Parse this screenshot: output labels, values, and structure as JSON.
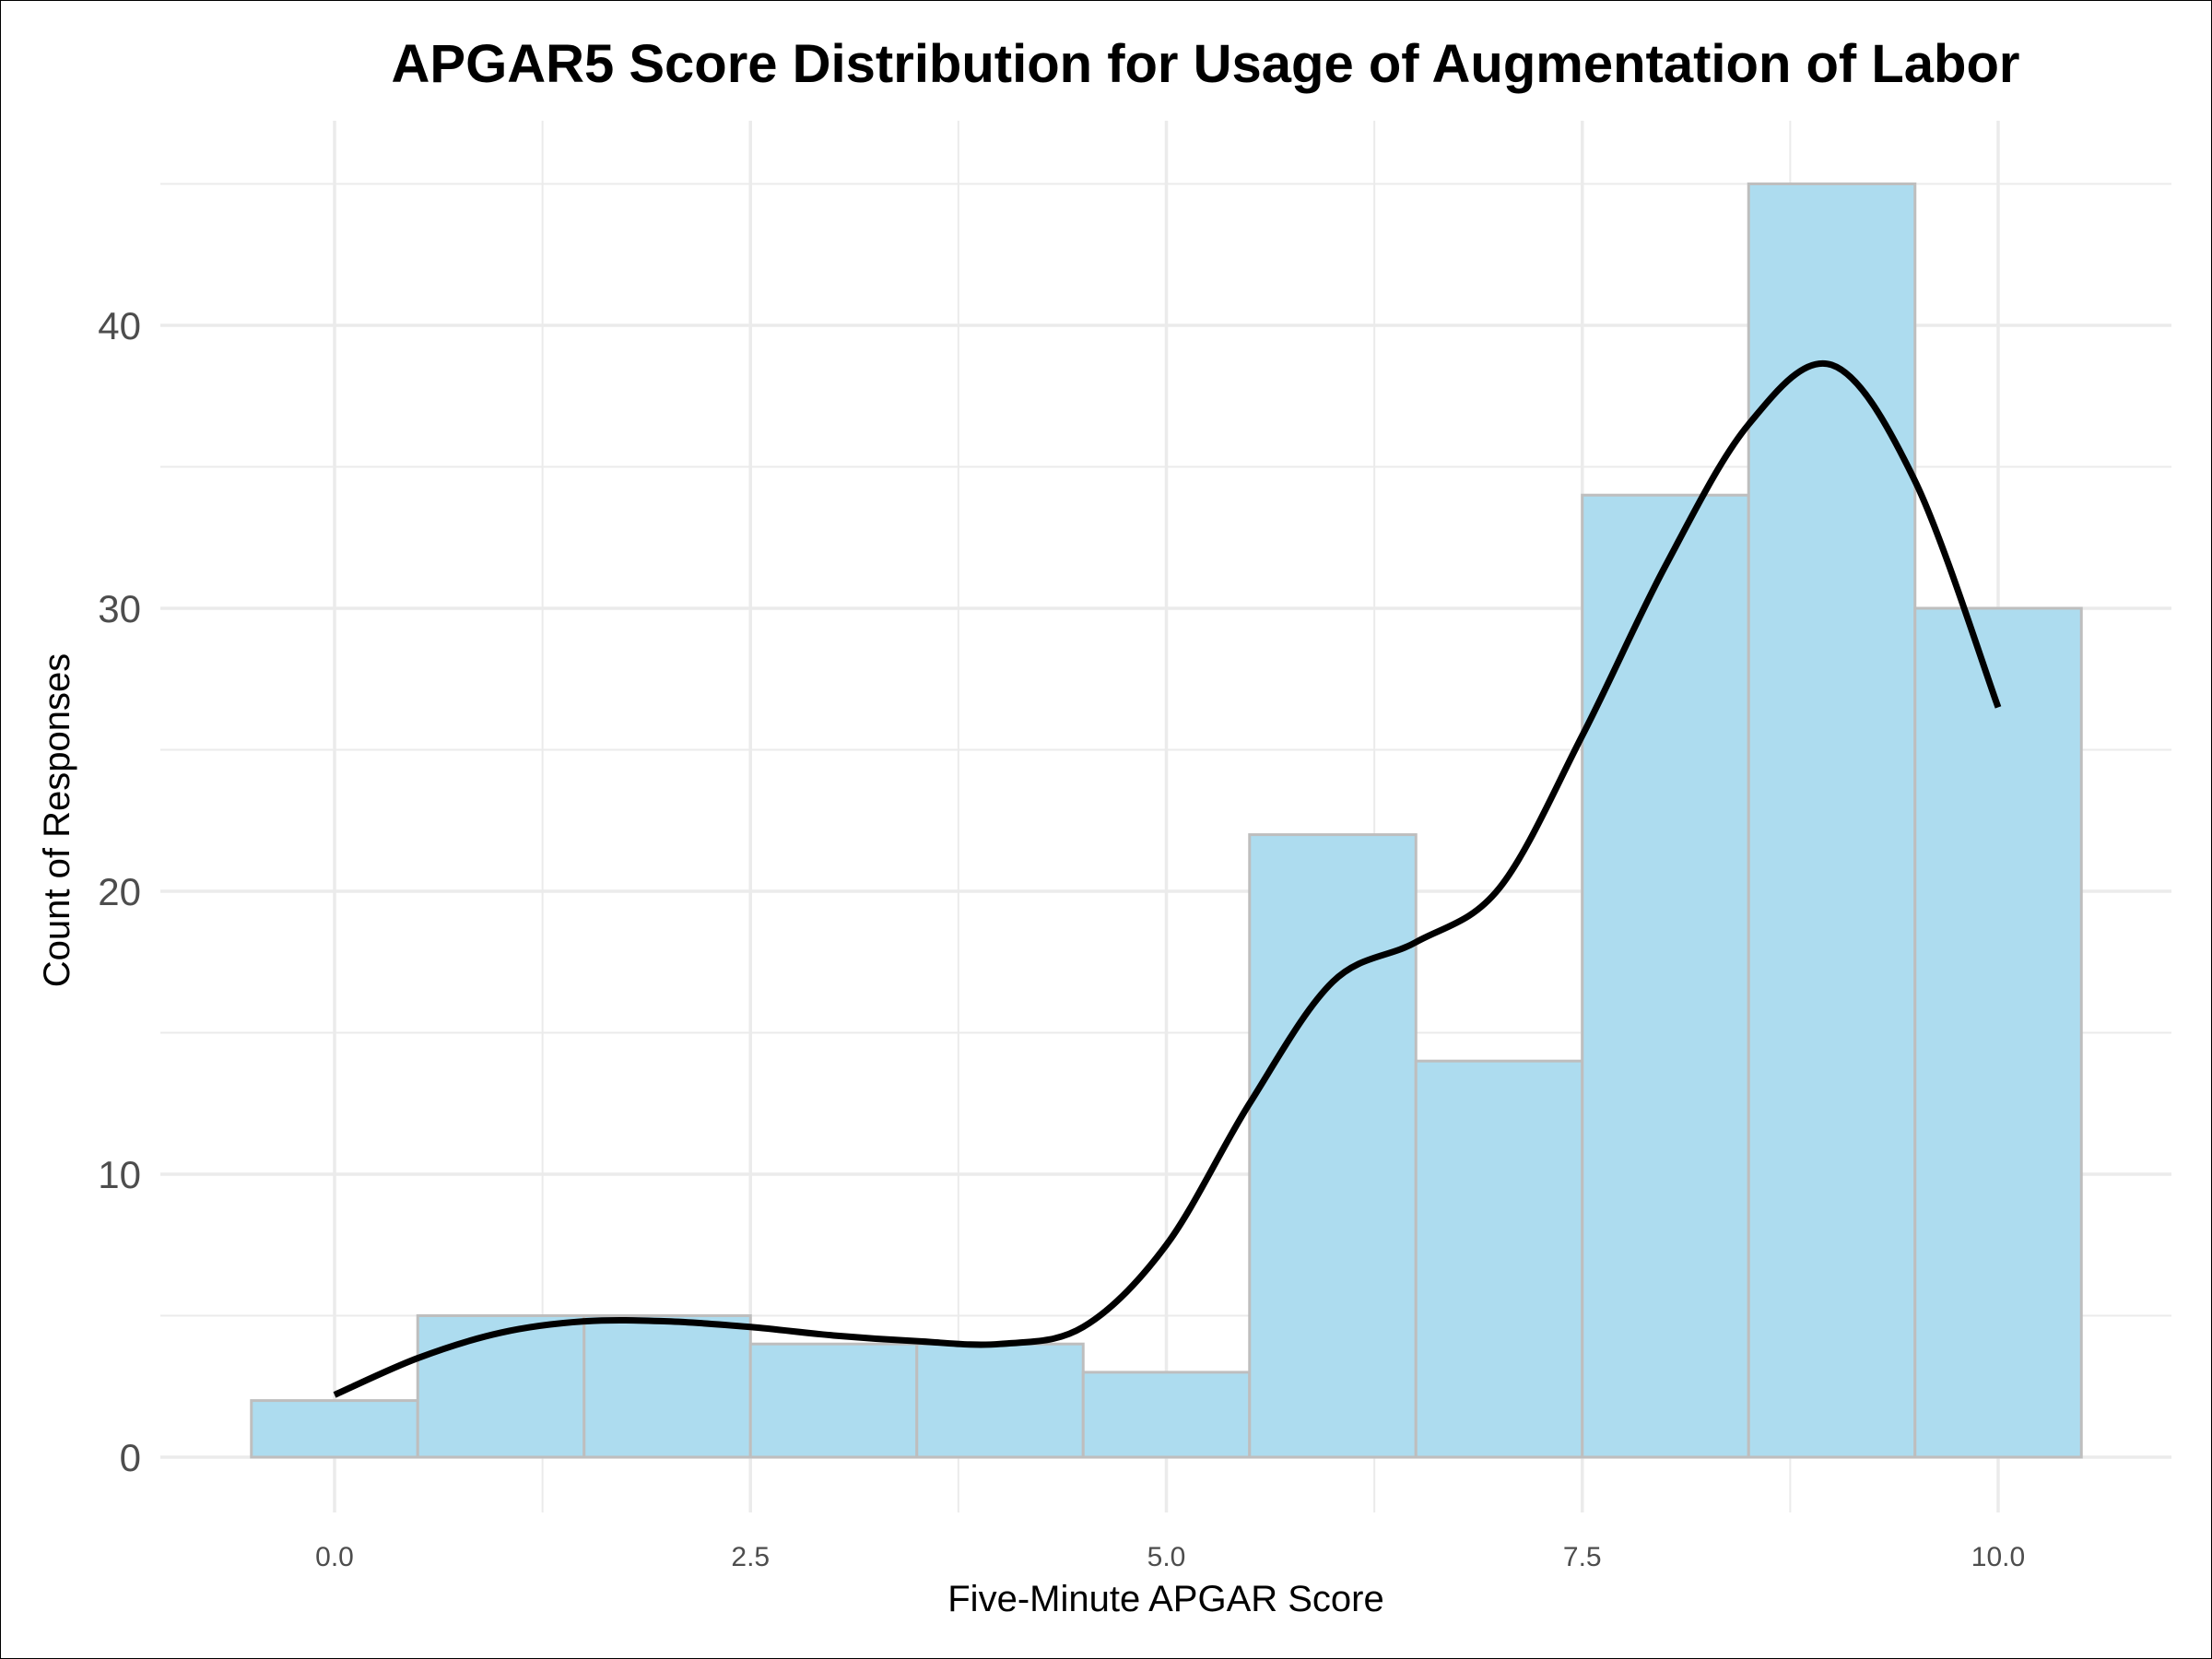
{
  "chart_data": {
    "type": "bar",
    "title": "APGAR5 Score Distribution for Usage of Augmentation of Labor",
    "xlabel": "Five-Minute APGAR Score",
    "ylabel": "Count of Responses",
    "bin_width": 1,
    "bins": [
      {
        "x": 0,
        "count": 2
      },
      {
        "x": 1,
        "count": 5
      },
      {
        "x": 2,
        "count": 5
      },
      {
        "x": 3,
        "count": 4
      },
      {
        "x": 4,
        "count": 4
      },
      {
        "x": 5,
        "count": 3
      },
      {
        "x": 6,
        "count": 22
      },
      {
        "x": 7,
        "count": 14
      },
      {
        "x": 8,
        "count": 34
      },
      {
        "x": 9,
        "count": 45
      },
      {
        "x": 10,
        "count": 30
      }
    ],
    "density_curve": {
      "x": [
        0,
        0.5,
        1,
        1.5,
        2,
        2.5,
        3,
        3.5,
        4,
        4.5,
        5,
        5.5,
        6,
        6.5,
        7,
        7.5,
        8,
        8.5,
        9,
        9.5,
        10
      ],
      "y": [
        2.2,
        3.5,
        4.4,
        4.8,
        4.8,
        4.6,
        4.3,
        4.1,
        4.0,
        4.6,
        7.5,
        12.5,
        16.8,
        18.2,
        20.1,
        25.5,
        31.5,
        36.5,
        38.6,
        34.5,
        26.5
      ]
    },
    "xticks": [
      "0.0",
      "2.5",
      "5.0",
      "7.5",
      "10.0"
    ],
    "xtick_values": [
      0,
      2.5,
      5,
      7.5,
      10
    ],
    "yticks": [
      "0",
      "10",
      "20",
      "30",
      "40"
    ],
    "ytick_values": [
      0,
      10,
      20,
      30,
      40
    ],
    "xlim": [
      -0.5,
      10.5
    ],
    "ylim": [
      0,
      45
    ],
    "grid": true,
    "colors": {
      "bar_fill": "#ADDCEF",
      "bar_stroke": "#BEBEBE",
      "curve": "#000000",
      "grid": "#EBEBEB"
    }
  }
}
